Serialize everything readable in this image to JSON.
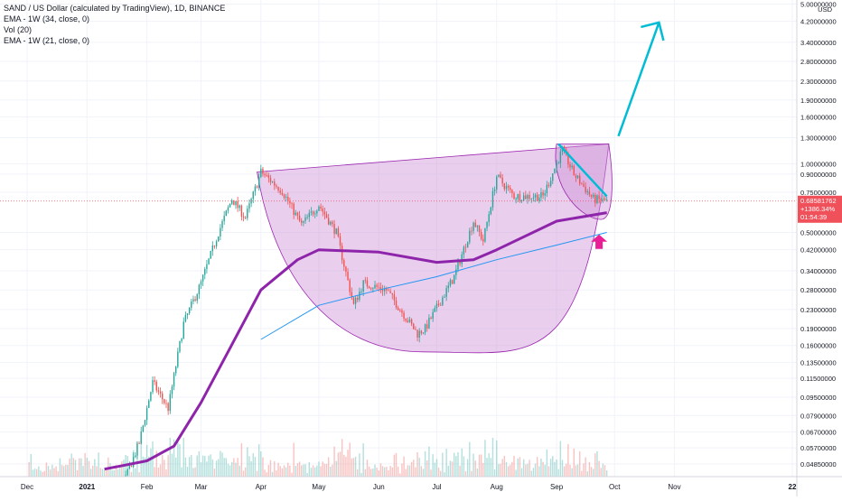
{
  "legend": {
    "title": "SAND / US Dollar (calculated by TradingView), 1D, BINANCE",
    "ind1": "EMA - 1W (34, close, 0)",
    "ind2": "Vol (20)",
    "ind3": "EMA - 1W (21, close, 0)"
  },
  "price_axis": {
    "unit": "USD",
    "tick_labels": [
      "5.00000000",
      "4.20000000",
      "3.40000000",
      "2.80000000",
      "2.30000000",
      "1.90000000",
      "1.60000000",
      "1.30000000",
      "1.00000000",
      "0.90000000",
      "0.75000000",
      "0.50000000",
      "0.42000000",
      "0.34000000",
      "0.28000000",
      "0.23000000",
      "0.19000000",
      "0.16000000",
      "0.13500000",
      "0.11500000",
      "0.09500000",
      "0.07900000",
      "0.06700000",
      "0.05700000",
      "0.04850000"
    ]
  },
  "time_axis": {
    "tick_labels": [
      "Dec",
      "2021",
      "Feb",
      "Mar",
      "Apr",
      "May",
      "Jun",
      "Jul",
      "Aug",
      "Sep",
      "Oct",
      "Nov",
      "22"
    ]
  },
  "last_price": {
    "price": "0.68581762",
    "change": "+1386.34%",
    "countdown": "01:54:39"
  },
  "colors": {
    "up": "#26a69a",
    "down": "#ef5350",
    "ema34": "#2196f3",
    "ema21": "#8e24aa",
    "pattern_fill": "#ce93d8",
    "trend_arrow": "#00bcd4",
    "pink_arrow": "#e91e96",
    "price_tag": "#f0505a"
  },
  "chart_data": {
    "type": "candlestick",
    "symbol": "SAND / US Dollar (calculated by TradingView)",
    "interval": "1D",
    "exchange": "BINANCE",
    "y_scale": "log",
    "ylim": [
      0.045,
      5.0
    ],
    "x_range": [
      "2020-12-01",
      "2022-01-01"
    ],
    "price_path": [
      {
        "date": "2020-12-01",
        "close": 0.038
      },
      {
        "date": "2021-01-01",
        "close": 0.039
      },
      {
        "date": "2021-01-20",
        "close": 0.04
      },
      {
        "date": "2021-01-28",
        "close": 0.06
      },
      {
        "date": "2021-02-04",
        "close": 0.11
      },
      {
        "date": "2021-02-12",
        "close": 0.085
      },
      {
        "date": "2021-02-20",
        "close": 0.2
      },
      {
        "date": "2021-03-01",
        "close": 0.3
      },
      {
        "date": "2021-03-10",
        "close": 0.5
      },
      {
        "date": "2021-03-17",
        "close": 0.7
      },
      {
        "date": "2021-03-24",
        "close": 0.58
      },
      {
        "date": "2021-04-01",
        "close": 0.92
      },
      {
        "date": "2021-04-12",
        "close": 0.76
      },
      {
        "date": "2021-04-22",
        "close": 0.54
      },
      {
        "date": "2021-05-01",
        "close": 0.66
      },
      {
        "date": "2021-05-10",
        "close": 0.5
      },
      {
        "date": "2021-05-19",
        "close": 0.24
      },
      {
        "date": "2021-05-24",
        "close": 0.3
      },
      {
        "date": "2021-06-05",
        "close": 0.28
      },
      {
        "date": "2021-06-21",
        "close": 0.18
      },
      {
        "date": "2021-06-25",
        "close": 0.19
      },
      {
        "date": "2021-07-10",
        "close": 0.32
      },
      {
        "date": "2021-07-20",
        "close": 0.56
      },
      {
        "date": "2021-07-25",
        "close": 0.46
      },
      {
        "date": "2021-08-01",
        "close": 0.88
      },
      {
        "date": "2021-08-10",
        "close": 0.72
      },
      {
        "date": "2021-08-25",
        "close": 0.72
      },
      {
        "date": "2021-09-04",
        "close": 1.15
      },
      {
        "date": "2021-09-10",
        "close": 0.9
      },
      {
        "date": "2021-09-20",
        "close": 0.7
      },
      {
        "date": "2021-09-27",
        "close": 0.686
      }
    ],
    "series": [
      {
        "name": "EMA - 1W (34, close, 0)",
        "points": [
          {
            "date": "2021-04-01",
            "value": 0.17
          },
          {
            "date": "2021-05-01",
            "value": 0.24
          },
          {
            "date": "2021-06-01",
            "value": 0.28
          },
          {
            "date": "2021-07-01",
            "value": 0.32
          },
          {
            "date": "2021-08-01",
            "value": 0.38
          },
          {
            "date": "2021-09-01",
            "value": 0.44
          },
          {
            "date": "2021-09-27",
            "value": 0.5
          }
        ]
      },
      {
        "name": "EMA - 1W (21, close, 0)",
        "points": [
          {
            "date": "2021-01-10",
            "value": 0.046
          },
          {
            "date": "2021-02-01",
            "value": 0.05
          },
          {
            "date": "2021-02-15",
            "value": 0.058
          },
          {
            "date": "2021-03-01",
            "value": 0.09
          },
          {
            "date": "2021-03-15",
            "value": 0.15
          },
          {
            "date": "2021-04-01",
            "value": 0.28
          },
          {
            "date": "2021-04-20",
            "value": 0.38
          },
          {
            "date": "2021-05-01",
            "value": 0.42
          },
          {
            "date": "2021-06-01",
            "value": 0.41
          },
          {
            "date": "2021-07-01",
            "value": 0.37
          },
          {
            "date": "2021-07-20",
            "value": 0.38
          },
          {
            "date": "2021-08-01",
            "value": 0.42
          },
          {
            "date": "2021-09-01",
            "value": 0.56
          },
          {
            "date": "2021-09-27",
            "value": 0.61
          }
        ]
      }
    ],
    "annotations": {
      "cup": {
        "left": {
          "date": "2021-03-30",
          "price": 0.92
        },
        "right": {
          "date": "2021-09-28",
          "price": 1.22
        },
        "bottom": {
          "date": "2021-06-24",
          "price": 0.15
        }
      },
      "handle": {
        "left": {
          "date": "2021-09-01",
          "price": 1.22
        },
        "right": {
          "date": "2021-09-28",
          "price": 1.22
        },
        "bottom": {
          "date": "2021-09-24",
          "price": 0.57
        }
      },
      "trendline": {
        "from": {
          "date": "2021-09-02",
          "price": 1.22
        },
        "to": {
          "date": "2021-09-27",
          "price": 0.72
        }
      },
      "target_arrow": {
        "from": {
          "date": "2021-10-03",
          "price": 1.32
        },
        "to": {
          "date": "2021-10-24",
          "price": 4.15
        }
      },
      "pink_arrow": {
        "date": "2021-09-23",
        "price": 0.49
      }
    },
    "grid": true,
    "legend_position": "top-left"
  }
}
